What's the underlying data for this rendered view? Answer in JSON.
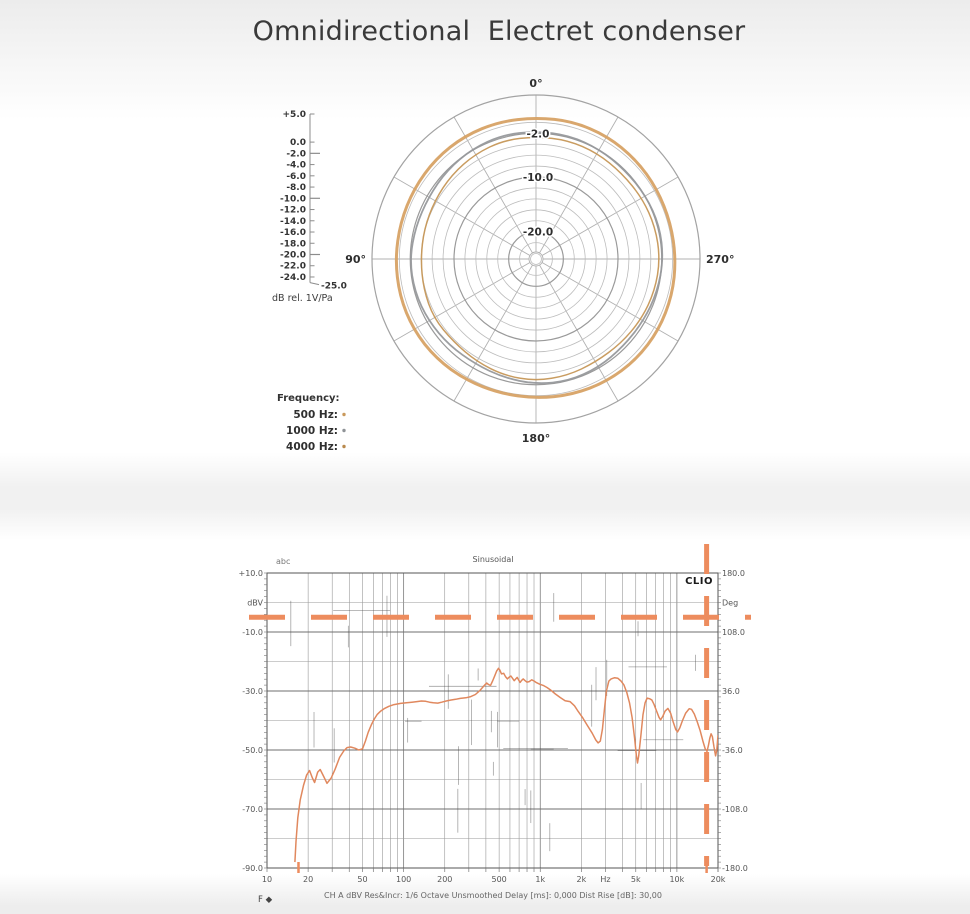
{
  "page": {
    "title": "Omnidirectional  Electret condenser"
  },
  "chart_data": [
    {
      "type": "line",
      "projection": "polar",
      "title": "",
      "r_axis": {
        "min": -25,
        "max": 5,
        "grid_step": 2,
        "outer_db": 5,
        "major_rings": [
          -2,
          -10,
          -20
        ],
        "unit": "dB rel. 1V/Pa",
        "scale_ticks": [
          {
            "label": "+5.0",
            "db": 5
          },
          {
            "label": "0.0",
            "db": 0
          },
          {
            "label": "-2.0",
            "db": -2,
            "major": true
          },
          {
            "label": "-4.0",
            "db": -4
          },
          {
            "label": "-6.0",
            "db": -6
          },
          {
            "label": "-8.0",
            "db": -8
          },
          {
            "label": "-10.0",
            "db": -10,
            "major": true
          },
          {
            "label": "-12.0",
            "db": -12
          },
          {
            "label": "-14.0",
            "db": -14
          },
          {
            "label": "-16.0",
            "db": -16
          },
          {
            "label": "-18.0",
            "db": -18
          },
          {
            "label": "-20.0",
            "db": -20,
            "major": true
          },
          {
            "label": "-22.0",
            "db": -22
          },
          {
            "label": "-24.0",
            "db": -24
          },
          {
            "label": "-25.0",
            "db": -25,
            "elbow": true
          }
        ]
      },
      "angle_labels": [
        {
          "deg": 0,
          "text": "0°"
        },
        {
          "deg": 90,
          "text": "90°"
        },
        {
          "deg": 180,
          "text": "180°"
        },
        {
          "deg": 270,
          "text": "270°"
        }
      ],
      "ring_labels": [
        {
          "db": -2,
          "text": "-2.0"
        },
        {
          "db": -10,
          "text": "-10.0"
        },
        {
          "db": -20,
          "text": "-20.0"
        }
      ],
      "legend": {
        "title": "Frequency:",
        "items": [
          {
            "label": "500 Hz:",
            "color": "#c9995c"
          },
          {
            "label": "1000 Hz:",
            "color": "#8f9397"
          },
          {
            "label": "4000 Hz:",
            "color": "#b98a4e"
          }
        ]
      },
      "angle_step_deg": 15,
      "series": [
        {
          "name": "500 Hz",
          "color": "#d7a265",
          "width": 3.0,
          "db": [
            0.9,
            1.0,
            1.05,
            0.95,
            0.8,
            0.7,
            0.75,
            0.85,
            0.9,
            0.8,
            0.6,
            0.45,
            0.5,
            0.7,
            0.9,
            1.0,
            0.95,
            0.8,
            0.6,
            0.5,
            0.6,
            0.8,
            1.0,
            1.05
          ]
        },
        {
          "name": "1000 Hz",
          "color": "#97999c",
          "width": 1.8,
          "db": [
            -1.6,
            -1.5,
            -1.7,
            -2.0,
            -2.3,
            -2.2,
            -1.9,
            -2.0,
            -2.3,
            -2.6,
            -2.8,
            -2.5,
            -2.1,
            -1.9,
            -2.1,
            -2.4,
            -2.3,
            -2.0,
            -1.7,
            -1.6,
            -1.8,
            -2.0,
            -1.8,
            -1.6
          ]
        },
        {
          "name": "4000 Hz",
          "color": "#c69757",
          "width": 1.5,
          "db": [
            -2.6,
            -2.5,
            -2.8,
            -3.2,
            -3.6,
            -3.8,
            -3.9,
            -3.7,
            -3.4,
            -3.6,
            -3.3,
            -2.9,
            -2.7,
            -2.9,
            -3.2,
            -3.1,
            -2.8,
            -2.5,
            -2.3,
            -2.4,
            -2.6,
            -2.8,
            -2.6,
            -2.5
          ]
        }
      ]
    },
    {
      "type": "line",
      "x_scale": "log",
      "title": "Sinusoidal",
      "top_left_label": "abc",
      "logo": "CLIO",
      "x_axis": {
        "min": 10,
        "max": 20000,
        "ticks": [
          {
            "f": 10,
            "label": "10"
          },
          {
            "f": 20,
            "label": "20"
          },
          {
            "f": 50,
            "label": "50"
          },
          {
            "f": 100,
            "label": "100"
          },
          {
            "f": 200,
            "label": "200"
          },
          {
            "f": 500,
            "label": "500"
          },
          {
            "f": 1000,
            "label": "1k"
          },
          {
            "f": 2000,
            "label": "2k"
          },
          {
            "f": 3000,
            "label": "Hz"
          },
          {
            "f": 5000,
            "label": "5k"
          },
          {
            "f": 10000,
            "label": "10k"
          },
          {
            "f": 20000,
            "label": "20k"
          }
        ]
      },
      "y_left": {
        "unit": "dBV",
        "min": -90,
        "max": 10,
        "labels": [
          "+10.0",
          "-10.0",
          "-30.0",
          "-50.0",
          "-70.0",
          "-90.0"
        ]
      },
      "y_right": {
        "unit": "Deg",
        "min": -180,
        "max": 180,
        "labels": [
          "180.0",
          "108.0",
          "36.0",
          "-36.0",
          "-108.0",
          "-180.0"
        ]
      },
      "caption": "CH A    dBV    Res&Incr: 1/6 Octave    Unsmoothed    Delay [ms]: 0,000    Dist Rise [dB]: 30,00",
      "footer_left": "F ◆",
      "marker_lines": {
        "horizontal_dbv": -5,
        "vertical_hz": 16500,
        "color": "#ed8c5e"
      },
      "axis_marker_ticks_hz": [
        17,
        16500
      ],
      "noise_marks": {
        "seed": 11,
        "vertical": 24,
        "horizontal": 9
      },
      "series": [
        {
          "name": "CH A",
          "color": "#e0885e",
          "width": 1.5,
          "points": [
            [
              16,
              -88
            ],
            [
              16.3,
              -81
            ],
            [
              16.8,
              -73
            ],
            [
              17.5,
              -67
            ],
            [
              18.5,
              -62
            ],
            [
              19.5,
              -58.5
            ],
            [
              20.5,
              -57
            ],
            [
              21.5,
              -59.5
            ],
            [
              22.3,
              -61
            ],
            [
              23.5,
              -57.5
            ],
            [
              24.5,
              -56.6
            ],
            [
              26,
              -59
            ],
            [
              27.5,
              -61.3
            ],
            [
              29.5,
              -59.5
            ],
            [
              31.5,
              -56.5
            ],
            [
              34,
              -52.5
            ],
            [
              36.5,
              -50.3
            ],
            [
              38.5,
              -49.2
            ],
            [
              41,
              -49
            ],
            [
              44,
              -49.4
            ],
            [
              47,
              -50
            ],
            [
              50,
              -49.6
            ],
            [
              52.5,
              -47
            ],
            [
              55,
              -44
            ],
            [
              58,
              -41.5
            ],
            [
              61,
              -39.5
            ],
            [
              64,
              -38
            ],
            [
              68,
              -36.8
            ],
            [
              72,
              -36
            ],
            [
              78,
              -35.2
            ],
            [
              85,
              -34.6
            ],
            [
              95,
              -34.2
            ],
            [
              105,
              -34
            ],
            [
              115,
              -33.8
            ],
            [
              125,
              -33.6
            ],
            [
              135,
              -33.4
            ],
            [
              145,
              -33.5
            ],
            [
              155,
              -33.8
            ],
            [
              165,
              -34
            ],
            [
              178,
              -34.1
            ],
            [
              190,
              -33.8
            ],
            [
              205,
              -33.4
            ],
            [
              220,
              -33.1
            ],
            [
              240,
              -32.8
            ],
            [
              260,
              -32.5
            ],
            [
              285,
              -32.3
            ],
            [
              310,
              -31.9
            ],
            [
              335,
              -31.2
            ],
            [
              362,
              -29.8
            ],
            [
              385,
              -28.4
            ],
            [
              405,
              -27.3
            ],
            [
              418,
              -27.8
            ],
            [
              432,
              -28.1
            ],
            [
              448,
              -26.6
            ],
            [
              465,
              -24.8
            ],
            [
              480,
              -23.2
            ],
            [
              495,
              -22.3
            ],
            [
              505,
              -22.8
            ],
            [
              520,
              -24.2
            ],
            [
              540,
              -24.0
            ],
            [
              558,
              -25.2
            ],
            [
              575,
              -25.9
            ],
            [
              592,
              -25.3
            ],
            [
              610,
              -24.9
            ],
            [
              628,
              -25.8
            ],
            [
              645,
              -26.5
            ],
            [
              662,
              -25.9
            ],
            [
              678,
              -25.4
            ],
            [
              695,
              -26.3
            ],
            [
              712,
              -27.1
            ],
            [
              730,
              -26.4
            ],
            [
              750,
              -25.9
            ],
            [
              775,
              -26.5
            ],
            [
              800,
              -27.0
            ],
            [
              830,
              -26.8
            ],
            [
              865,
              -26.2
            ],
            [
              900,
              -26.6
            ],
            [
              940,
              -27.2
            ],
            [
              990,
              -27.7
            ],
            [
              1050,
              -28.1
            ],
            [
              1120,
              -28.8
            ],
            [
              1200,
              -29.8
            ],
            [
              1290,
              -31
            ],
            [
              1400,
              -32.2
            ],
            [
              1520,
              -33.3
            ],
            [
              1650,
              -33.6
            ],
            [
              1780,
              -35
            ],
            [
              1900,
              -37
            ],
            [
              2050,
              -39.2
            ],
            [
              2200,
              -41.5
            ],
            [
              2400,
              -44.3
            ],
            [
              2550,
              -46.6
            ],
            [
              2650,
              -47.6
            ],
            [
              2750,
              -47
            ],
            [
              2850,
              -43
            ],
            [
              2950,
              -36
            ],
            [
              3050,
              -30
            ],
            [
              3180,
              -26.6
            ],
            [
              3300,
              -25.9
            ],
            [
              3500,
              -25.5
            ],
            [
              3700,
              -25.7
            ],
            [
              3900,
              -26.6
            ],
            [
              4100,
              -28
            ],
            [
              4300,
              -30.5
            ],
            [
              4500,
              -34
            ],
            [
              4700,
              -39
            ],
            [
              4900,
              -46
            ],
            [
              5050,
              -52
            ],
            [
              5150,
              -54.4
            ],
            [
              5250,
              -52
            ],
            [
              5450,
              -45
            ],
            [
              5650,
              -38
            ],
            [
              5850,
              -34
            ],
            [
              6050,
              -32.4
            ],
            [
              6300,
              -32.6
            ],
            [
              6550,
              -33
            ],
            [
              6800,
              -34.5
            ],
            [
              7100,
              -36.8
            ],
            [
              7400,
              -38.9
            ],
            [
              7600,
              -39.8
            ],
            [
              7900,
              -38.5
            ],
            [
              8200,
              -36.8
            ],
            [
              8600,
              -35.9
            ],
            [
              9000,
              -37.5
            ],
            [
              9400,
              -40.5
            ],
            [
              9800,
              -43
            ],
            [
              10100,
              -43.9
            ],
            [
              10500,
              -42.5
            ],
            [
              11000,
              -40
            ],
            [
              11600,
              -37.5
            ],
            [
              12300,
              -36
            ],
            [
              12800,
              -36.2
            ],
            [
              13400,
              -37.8
            ],
            [
              14100,
              -40.5
            ],
            [
              14800,
              -43.5
            ],
            [
              15500,
              -47
            ],
            [
              16100,
              -49.5
            ],
            [
              16600,
              -50.5
            ],
            [
              17000,
              -48.5
            ],
            [
              17400,
              -46
            ],
            [
              17800,
              -44.5
            ],
            [
              18200,
              -45.5
            ],
            [
              18700,
              -49
            ],
            [
              19200,
              -52
            ],
            [
              19600,
              -50
            ],
            [
              20000,
              -45
            ]
          ]
        }
      ]
    }
  ]
}
